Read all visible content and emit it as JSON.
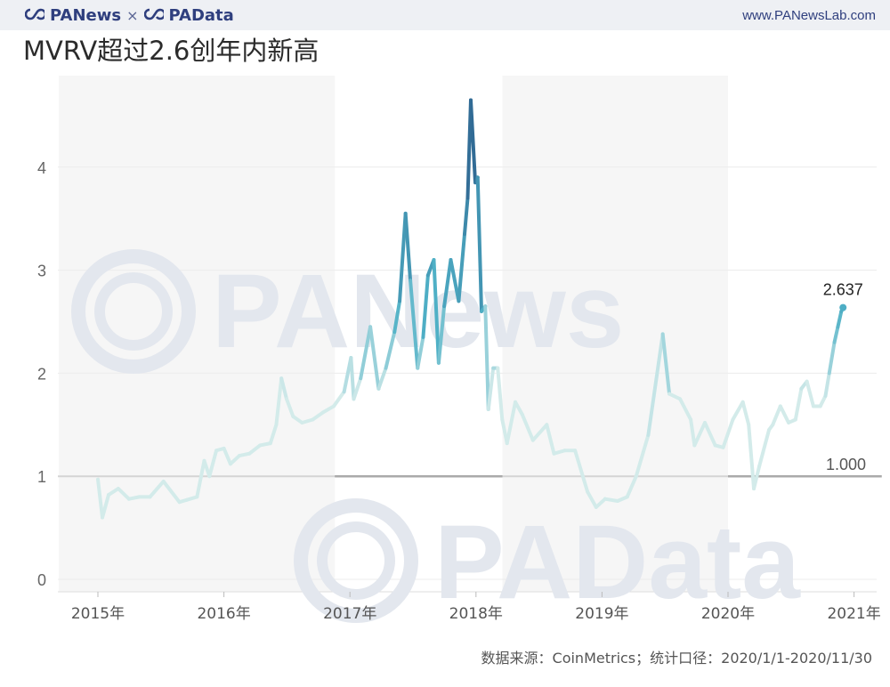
{
  "header": {
    "brand_primary": "PANews",
    "brand_separator": "×",
    "brand_secondary": "PAData",
    "website": "www.PANewsLab.com"
  },
  "title": "MVRV超过2.6创年内新高",
  "source_note": "数据来源：CoinMetrics；统计口径：2020/1/1-2020/11/30",
  "watermarks": [
    "PANews",
    "PAData"
  ],
  "colors": {
    "low": "#d3ebea",
    "mid": "#4fb0c6",
    "high": "#2b5c8a",
    "reference_line": "#aaaaaa",
    "year_band": "#f6f6f6",
    "watermark": "#dfe3ea"
  },
  "chart_data": {
    "type": "line",
    "title": "MVRV超过2.6创年内新高",
    "xlabel": "",
    "ylabel": "",
    "x_ticks": [
      "2015年",
      "2016年",
      "2017年",
      "2018年",
      "2019年",
      "2020年",
      "2021年"
    ],
    "y_ticks": [
      0,
      1,
      2,
      3,
      4
    ],
    "ylim": [
      -0.1,
      4.8
    ],
    "grid": true,
    "reference_line": {
      "value": 1.0,
      "label": "1.000"
    },
    "last_value_label": "2.637",
    "series": [
      {
        "points": [
          [
            "2015-01-01",
            0.97
          ],
          [
            "2015-01-14",
            0.6
          ],
          [
            "2015-02-01",
            0.82
          ],
          [
            "2015-03-01",
            0.88
          ],
          [
            "2015-04-01",
            0.78
          ],
          [
            "2015-05-01",
            0.8
          ],
          [
            "2015-06-01",
            0.8
          ],
          [
            "2015-07-10",
            0.95
          ],
          [
            "2015-08-25",
            0.75
          ],
          [
            "2015-09-15",
            0.77
          ],
          [
            "2015-10-15",
            0.8
          ],
          [
            "2015-11-05",
            1.15
          ],
          [
            "2015-11-20",
            1.0
          ],
          [
            "2015-12-10",
            1.25
          ],
          [
            "2016-01-01",
            1.27
          ],
          [
            "2016-01-20",
            1.12
          ],
          [
            "2016-02-15",
            1.2
          ],
          [
            "2016-03-15",
            1.22
          ],
          [
            "2016-04-15",
            1.3
          ],
          [
            "2016-05-15",
            1.32
          ],
          [
            "2016-06-01",
            1.5
          ],
          [
            "2016-06-16",
            1.95
          ],
          [
            "2016-07-01",
            1.75
          ],
          [
            "2016-07-20",
            1.58
          ],
          [
            "2016-08-15",
            1.52
          ],
          [
            "2016-09-15",
            1.55
          ],
          [
            "2016-10-15",
            1.62
          ],
          [
            "2016-11-15",
            1.68
          ],
          [
            "2016-12-15",
            1.82
          ],
          [
            "2017-01-04",
            2.15
          ],
          [
            "2017-01-12",
            1.75
          ],
          [
            "2017-02-01",
            1.95
          ],
          [
            "2017-03-01",
            2.45
          ],
          [
            "2017-03-25",
            1.85
          ],
          [
            "2017-04-15",
            2.05
          ],
          [
            "2017-05-10",
            2.4
          ],
          [
            "2017-05-25",
            2.7
          ],
          [
            "2017-06-11",
            3.55
          ],
          [
            "2017-06-25",
            2.9
          ],
          [
            "2017-07-16",
            2.05
          ],
          [
            "2017-08-01",
            2.35
          ],
          [
            "2017-08-15",
            2.95
          ],
          [
            "2017-09-01",
            3.1
          ],
          [
            "2017-09-15",
            2.1
          ],
          [
            "2017-10-01",
            2.65
          ],
          [
            "2017-10-20",
            3.1
          ],
          [
            "2017-11-12",
            2.7
          ],
          [
            "2017-11-29",
            3.35
          ],
          [
            "2017-12-08",
            3.7
          ],
          [
            "2017-12-17",
            4.65
          ],
          [
            "2017-12-30",
            3.85
          ],
          [
            "2018-01-06",
            3.9
          ],
          [
            "2018-01-17",
            2.6
          ],
          [
            "2018-01-28",
            2.65
          ],
          [
            "2018-02-06",
            1.65
          ],
          [
            "2018-02-20",
            2.05
          ],
          [
            "2018-03-05",
            2.05
          ],
          [
            "2018-03-18",
            1.55
          ],
          [
            "2018-04-01",
            1.32
          ],
          [
            "2018-04-25",
            1.72
          ],
          [
            "2018-05-15",
            1.6
          ],
          [
            "2018-06-15",
            1.35
          ],
          [
            "2018-07-25",
            1.5
          ],
          [
            "2018-08-15",
            1.22
          ],
          [
            "2018-09-15",
            1.25
          ],
          [
            "2018-10-15",
            1.25
          ],
          [
            "2018-11-20",
            0.85
          ],
          [
            "2018-12-15",
            0.7
          ],
          [
            "2019-01-10",
            0.78
          ],
          [
            "2019-02-15",
            0.76
          ],
          [
            "2019-03-15",
            0.8
          ],
          [
            "2019-04-10",
            1.0
          ],
          [
            "2019-05-15",
            1.4
          ],
          [
            "2019-06-26",
            2.38
          ],
          [
            "2019-07-15",
            1.8
          ],
          [
            "2019-08-15",
            1.75
          ],
          [
            "2019-09-15",
            1.55
          ],
          [
            "2019-09-26",
            1.3
          ],
          [
            "2019-10-26",
            1.52
          ],
          [
            "2019-11-25",
            1.3
          ],
          [
            "2019-12-18",
            1.28
          ],
          [
            "2020-01-15",
            1.55
          ],
          [
            "2020-02-13",
            1.72
          ],
          [
            "2020-03-01",
            1.5
          ],
          [
            "2020-03-12",
            1.05
          ],
          [
            "2020-03-16",
            0.88
          ],
          [
            "2020-04-01",
            1.1
          ],
          [
            "2020-04-29",
            1.45
          ],
          [
            "2020-05-10",
            1.5
          ],
          [
            "2020-06-01",
            1.68
          ],
          [
            "2020-06-25",
            1.52
          ],
          [
            "2020-07-15",
            1.55
          ],
          [
            "2020-08-01",
            1.85
          ],
          [
            "2020-08-17",
            1.92
          ],
          [
            "2020-09-05",
            1.68
          ],
          [
            "2020-09-25",
            1.68
          ],
          [
            "2020-10-10",
            1.78
          ],
          [
            "2020-10-21",
            2.0
          ],
          [
            "2020-11-05",
            2.3
          ],
          [
            "2020-11-15",
            2.45
          ],
          [
            "2020-11-25",
            2.6
          ],
          [
            "2020-11-30",
            2.637
          ]
        ]
      }
    ]
  }
}
